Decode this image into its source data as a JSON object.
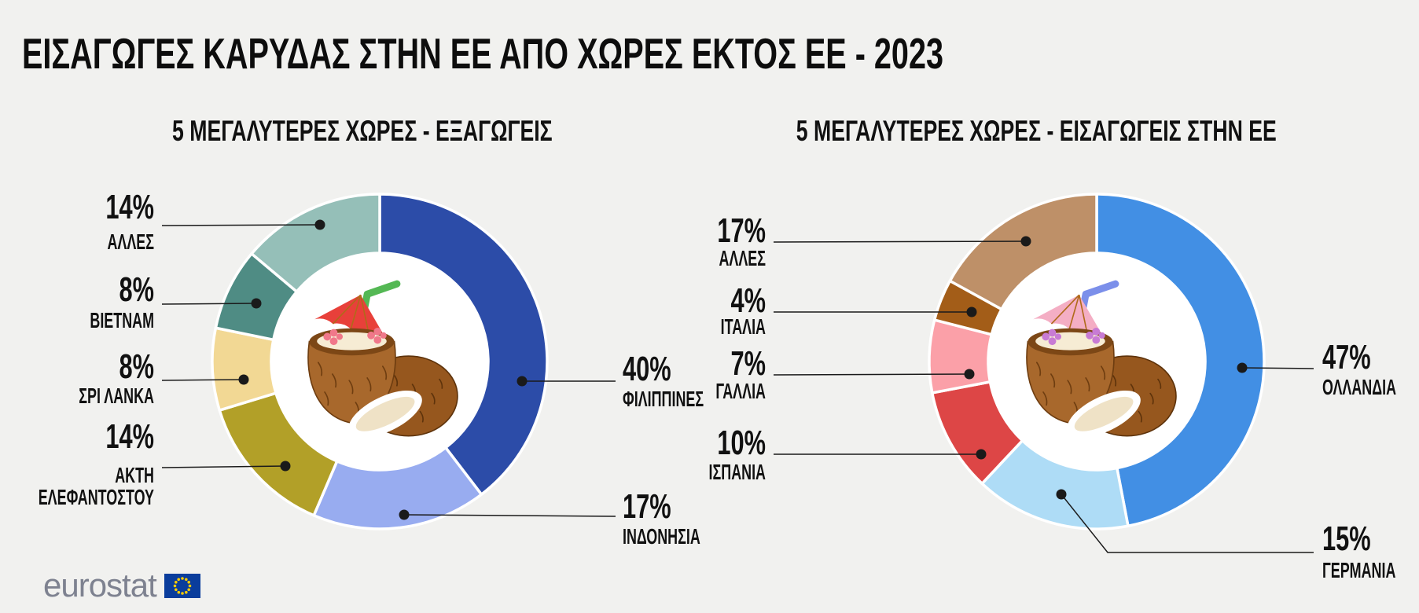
{
  "title": "ΕΙΣΑΓΩΓΕΣ ΚΑΡΥΔΑΣ ΣΤΗΝ ΕΕ ΑΠΟ ΧΩΡΕΣ ΕΚΤΟΣ ΕΕ - 2023",
  "background_color": "#F1F1EF",
  "text_color": "#111111",
  "chart_data": [
    {
      "type": "pie",
      "subtype": "donut",
      "title": "5 ΜΕΓΑΛΥΤΕΡΕΣ ΧΩΡΕΣ - ΕΞΑΓΩΓΕΙΣ",
      "unit": "%",
      "slices": [
        {
          "label": "ΦΙΛΙΠΠΙΝΕΣ",
          "value_pct": 40,
          "color": "#2C4CA8"
        },
        {
          "label": "ΙΝΔΟΝΗΣΙΑ",
          "value_pct": 17,
          "color": "#98ACF0"
        },
        {
          "label": "ΑΚΤΗ ΕΛΕΦΑΝΤΟΣΤΟΥ",
          "value_pct": 14,
          "color": "#B2A028"
        },
        {
          "label": "ΣΡΙ ΛΑΝΚΑ",
          "value_pct": 8,
          "color": "#F2D894"
        },
        {
          "label": "ΒΙΕΤΝΑΜ",
          "value_pct": 8,
          "color": "#4F8C84"
        },
        {
          "label": "ΑΛΛΕΣ",
          "value_pct": 14,
          "color": "#95BFB8"
        }
      ],
      "center_icon": {
        "name": "coconut-drink",
        "straw_color": "#54B854",
        "umbrella_color": "#E8403A",
        "flower_color": "#F0788A"
      }
    },
    {
      "type": "pie",
      "subtype": "donut",
      "title": "5 ΜΕΓΑΛΥΤΕΡΕΣ ΧΩΡΕΣ - ΕΙΣΑΓΩΓΕΙΣ ΣΤΗΝ ΕΕ",
      "unit": "%",
      "slices": [
        {
          "label": "ΟΛΛΑΝΔΙΑ",
          "value_pct": 47,
          "color": "#428FE4"
        },
        {
          "label": "ΓΕΡΜΑΝΙΑ",
          "value_pct": 15,
          "color": "#AEDCF6"
        },
        {
          "label": "ΙΣΠΑΝΙΑ",
          "value_pct": 10,
          "color": "#DD4646"
        },
        {
          "label": "ΓΑΛΛΙΑ",
          "value_pct": 7,
          "color": "#FBA0A8"
        },
        {
          "label": "ΙΤΑΛΙΑ",
          "value_pct": 4,
          "color": "#A35D18"
        },
        {
          "label": "ΑΛΛΕΣ",
          "value_pct": 17,
          "color": "#BE9068"
        }
      ],
      "center_icon": {
        "name": "coconut-drink",
        "straw_color": "#7B8FEA",
        "umbrella_color": "#F4AEC4",
        "flower_color": "#C87BD4"
      }
    }
  ],
  "logo": {
    "text": "eurostat",
    "text_color": "#7E8290",
    "flag_blue": "#0A3D9C",
    "star_yellow": "#FFCC00"
  }
}
